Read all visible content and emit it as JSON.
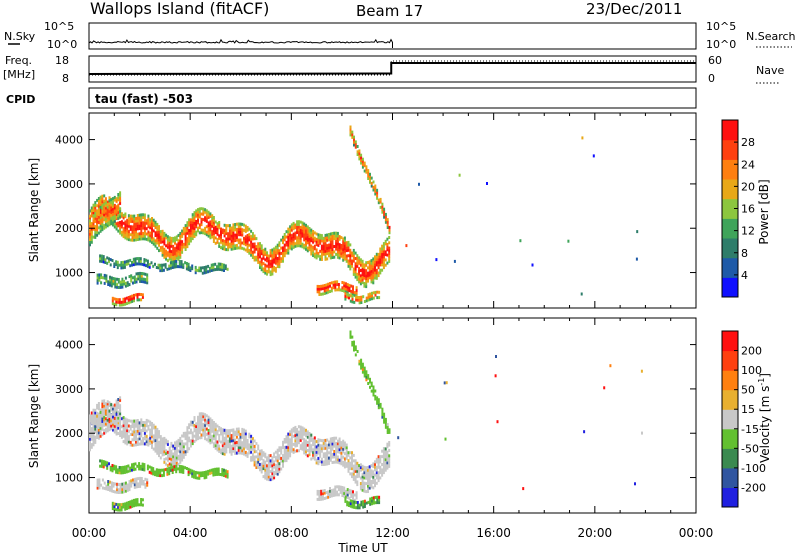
{
  "header": {
    "station": "Wallops Island (fitACF)",
    "beam": "Beam 17",
    "date": "23/Dec/2011"
  },
  "status_panel": {
    "nsky_label": "N.Sky",
    "nsky_ticks": [
      "10^5",
      "10^0"
    ],
    "nsearch_label": "N.Search",
    "freq_label": "Freq.",
    "freq_unit": "[MHz]",
    "freq_ticks": [
      "18",
      "8"
    ],
    "nave_ticks": [
      "60",
      "0"
    ],
    "nave_label": "Nave",
    "cpid_label": "CPID",
    "cpid_value": "tau (fast) -503"
  },
  "chart_data": [
    {
      "type": "heatmap",
      "panel": "power",
      "ylabel": "Slant Range [km]",
      "xlabel": "",
      "ylim": [
        200,
        4600
      ],
      "y_ticks": [
        1000,
        2000,
        3000,
        4000
      ],
      "x_range_hours": [
        0,
        24
      ],
      "colorbar": {
        "label": "Power [dB]",
        "ticks": [
          "4",
          "8",
          "12",
          "16",
          "20",
          "24",
          "28"
        ],
        "colors": [
          "#1010ff",
          "#1e5aa8",
          "#2e7d6a",
          "#3fa45a",
          "#8cc63e",
          "#e8a818",
          "#ff7f10",
          "#ff4010",
          "#ff1010"
        ]
      },
      "bands": [
        {
          "t0": 0.0,
          "t1": 11.9,
          "r_start": 2100,
          "r_end": 1300,
          "width": 550,
          "level": 0.85
        },
        {
          "t0": 0.0,
          "t1": 1.2,
          "r_start": 1900,
          "r_end": 2600,
          "width": 600,
          "level": 0.7
        },
        {
          "t0": 0.4,
          "t1": 5.5,
          "r_start": 1250,
          "r_end": 1050,
          "width": 160,
          "level": 0.4
        },
        {
          "t0": 0.3,
          "t1": 2.3,
          "r_start": 780,
          "r_end": 820,
          "width": 200,
          "level": 0.45
        },
        {
          "t0": 0.9,
          "t1": 2.1,
          "r_start": 380,
          "r_end": 380,
          "width": 160,
          "level": 0.95
        },
        {
          "t0": 9.0,
          "t1": 10.6,
          "r_start": 650,
          "r_end": 620,
          "width": 220,
          "level": 0.9
        },
        {
          "t0": 10.1,
          "t1": 11.5,
          "r_start": 420,
          "r_end": 420,
          "width": 140,
          "level": 0.8
        },
        {
          "t0": 10.3,
          "t1": 11.9,
          "r_start": 4200,
          "r_end": 1900,
          "width": 200,
          "level": 0.75
        }
      ]
    },
    {
      "type": "heatmap",
      "panel": "velocity",
      "ylabel": "Slant Range [km]",
      "xlabel": "Time UT",
      "ylim": [
        200,
        4600
      ],
      "y_ticks": [
        1000,
        2000,
        3000,
        4000
      ],
      "x_range_hours": [
        0,
        24
      ],
      "x_ticks": [
        "00:00",
        "04:00",
        "08:00",
        "12:00",
        "16:00",
        "20:00",
        "00:00"
      ],
      "colorbar": {
        "label": "Velocity [m s^-1]",
        "ticks": [
          "200",
          "100",
          "50",
          "15",
          "-15",
          "-50",
          "-100",
          "-200"
        ],
        "colors": [
          "#2020e0",
          "#3055a0",
          "#3a8a50",
          "#62c030",
          "#c8c8c8",
          "#e8b030",
          "#ff8010",
          "#ff4010",
          "#ff1010"
        ]
      },
      "bands": [
        {
          "t0": 0.0,
          "t1": 11.9,
          "r_start": 2100,
          "r_end": 1300,
          "width": 550,
          "level": 0.5
        },
        {
          "t0": 0.0,
          "t1": 1.2,
          "r_start": 1900,
          "r_end": 2600,
          "width": 600,
          "level": 0.5
        },
        {
          "t0": 0.4,
          "t1": 5.5,
          "r_start": 1250,
          "r_end": 1050,
          "width": 160,
          "level": 0.3
        },
        {
          "t0": 0.3,
          "t1": 2.3,
          "r_start": 780,
          "r_end": 820,
          "width": 200,
          "level": 0.5
        },
        {
          "t0": 0.9,
          "t1": 2.1,
          "r_start": 380,
          "r_end": 380,
          "width": 160,
          "level": 0.35
        },
        {
          "t0": 9.0,
          "t1": 10.6,
          "r_start": 650,
          "r_end": 620,
          "width": 220,
          "level": 0.5
        },
        {
          "t0": 10.1,
          "t1": 11.5,
          "r_start": 420,
          "r_end": 420,
          "width": 140,
          "level": 0.35
        },
        {
          "t0": 10.3,
          "t1": 11.9,
          "r_start": 4200,
          "r_end": 1900,
          "width": 200,
          "level": 0.35
        }
      ]
    }
  ]
}
